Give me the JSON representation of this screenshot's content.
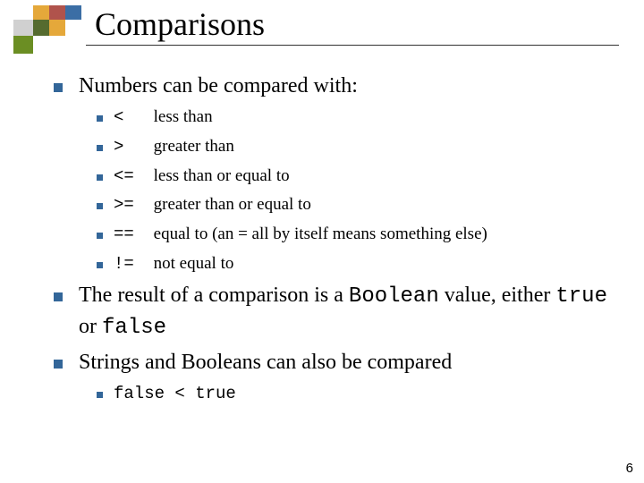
{
  "colors": {
    "bullet": "#336699",
    "rule": "#333333",
    "text": "#000000",
    "logo_green": "#6b8e23",
    "logo_darkgreen": "#556b2f",
    "logo_orange": "#e5a83a",
    "logo_red": "#b0534c",
    "logo_blue": "#3b6ea5",
    "logo_grey": "#d0d0d0"
  },
  "title": "Comparisons",
  "page_number": "6",
  "points": [
    {
      "text": "Numbers can be compared with:",
      "sub": [
        {
          "op": "<",
          "desc": "less than"
        },
        {
          "op": ">",
          "desc": "greater than"
        },
        {
          "op": "<=",
          "desc": "less than or equal to"
        },
        {
          "op": ">=",
          "desc": "greater than or equal to"
        },
        {
          "op": "==",
          "desc": "equal to (an = all by itself means something else)"
        },
        {
          "op": "!=",
          "desc": "not equal to"
        }
      ]
    },
    {
      "segments": [
        {
          "t": "The result of a comparison is a "
        },
        {
          "t": "Boolean",
          "mono": true
        },
        {
          "t": " value, either "
        },
        {
          "t": "true",
          "mono": true
        },
        {
          "t": " or "
        },
        {
          "t": "false",
          "mono": true
        }
      ]
    },
    {
      "text": "Strings and Booleans can also be compared",
      "sub": [
        {
          "mono_line": "false < true"
        }
      ]
    }
  ]
}
